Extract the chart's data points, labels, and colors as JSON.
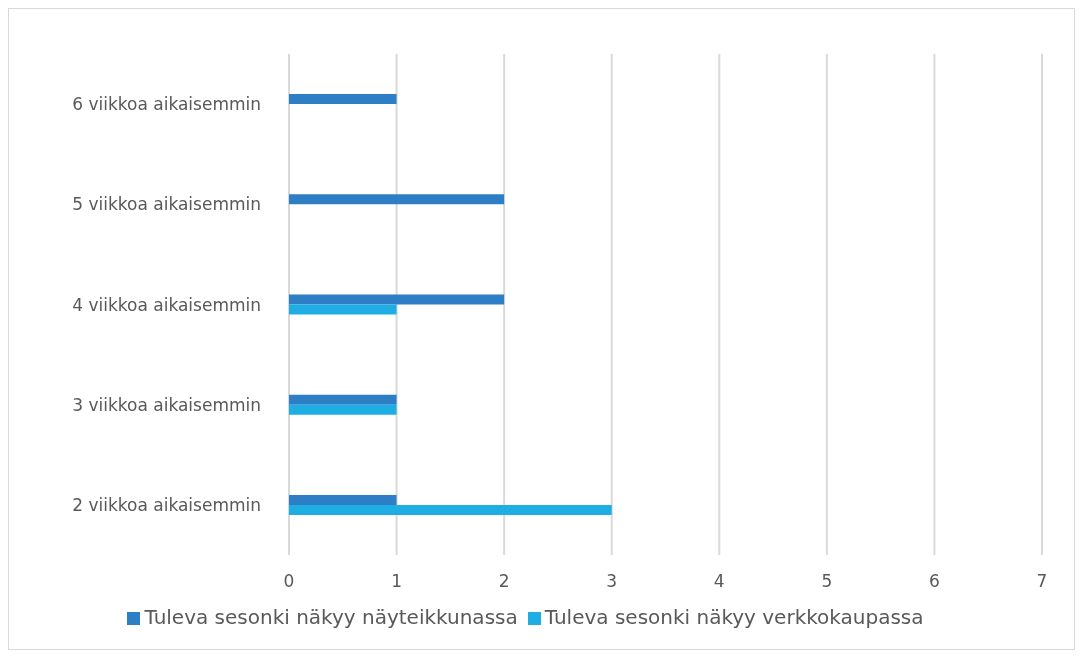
{
  "chart_data": {
    "type": "bar",
    "orientation": "horizontal",
    "categories": [
      "6 viikkoa aikaisemmin",
      "5 viikkoa aikaisemmin",
      "4 viikkoa aikaisemmin",
      "3 viikkoa aikaisemmin",
      "2 viikkoa aikaisemmin"
    ],
    "series": [
      {
        "name": "Tuleva sesonki näkyy näyteikkunassa",
        "color": "#2e7ec6",
        "values": [
          1,
          2,
          2,
          1,
          1
        ]
      },
      {
        "name": "Tuleva sesonki näkyy verkkokaupassa",
        "color": "#1eaee4",
        "values": [
          null,
          null,
          1,
          1,
          3
        ]
      }
    ],
    "xlim": [
      0,
      7
    ],
    "xticks": [
      0,
      1,
      2,
      3,
      4,
      5,
      6,
      7
    ],
    "grid": "x",
    "legend": "bottom"
  }
}
